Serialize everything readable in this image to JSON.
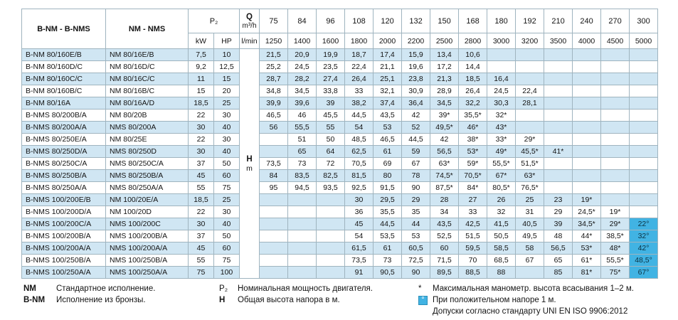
{
  "table": {
    "header": {
      "models_bronze": "B-NM - B-NMS",
      "models_standard": "NM - NMS",
      "power": "P₂",
      "kw": "kW",
      "hp": "HP",
      "flow": "Q",
      "flow_unit": "m³/h",
      "flow_unit_lmin": "l/min",
      "head": "H",
      "head_unit": "m",
      "q_m3h": [
        "75",
        "84",
        "96",
        "108",
        "120",
        "132",
        "150",
        "168",
        "180",
        "192",
        "210",
        "240",
        "270",
        "300"
      ],
      "q_lmin": [
        "1250",
        "1400",
        "1600",
        "1800",
        "2000",
        "2200",
        "2500",
        "2800",
        "3000",
        "3200",
        "3500",
        "4000",
        "4500",
        "5000"
      ]
    },
    "rows": [
      {
        "bnm": "B-NM 80/160E/B",
        "nm": "NM 80/16E/B",
        "kw": "7,5",
        "hp": "10",
        "h": [
          "21,5",
          "20,9",
          "19,9",
          "18,7",
          "17,4",
          "15,9",
          "13,4",
          "10,6",
          "",
          "",
          "",
          "",
          "",
          ""
        ]
      },
      {
        "bnm": "B-NM 80/160D/C",
        "nm": "NM 80/16D/C",
        "kw": "9,2",
        "hp": "12,5",
        "h": [
          "25,2",
          "24,5",
          "23,5",
          "22,4",
          "21,1",
          "19,6",
          "17,2",
          "14,4",
          "",
          "",
          "",
          "",
          "",
          ""
        ]
      },
      {
        "bnm": "B-NM 80/160C/C",
        "nm": "NM 80/16C/C",
        "kw": "11",
        "hp": "15",
        "h": [
          "28,7",
          "28,2",
          "27,4",
          "26,4",
          "25,1",
          "23,8",
          "21,3",
          "18,5",
          "16,4",
          "",
          "",
          "",
          "",
          ""
        ]
      },
      {
        "bnm": "B-NM 80/160B/C",
        "nm": "NM 80/16B/C",
        "kw": "15",
        "hp": "20",
        "h": [
          "34,8",
          "34,5",
          "33,8",
          "33",
          "32,1",
          "30,9",
          "28,9",
          "26,4",
          "24,5",
          "22,4",
          "",
          "",
          "",
          ""
        ]
      },
      {
        "bnm": "B-NM 80/16A",
        "nm": "NM 80/16A/D",
        "kw": "18,5",
        "hp": "25",
        "h": [
          "39,9",
          "39,6",
          "39",
          "38,2",
          "37,4",
          "36,4",
          "34,5",
          "32,2",
          "30,3",
          "28,1",
          "",
          "",
          "",
          ""
        ]
      },
      {
        "bnm": "B-NMS 80/200B/A",
        "nm": "NM 80/20B",
        "kw": "22",
        "hp": "30",
        "h": [
          "46,5",
          "46",
          "45,5",
          "44,5",
          "43,5",
          "42",
          "39*",
          "35,5*",
          "32*",
          "",
          "",
          "",
          "",
          ""
        ]
      },
      {
        "bnm": "B-NMS 80/200A/A",
        "nm": "NMS 80/200A",
        "kw": "30",
        "hp": "40",
        "h": [
          "56",
          "55,5",
          "55",
          "54",
          "53",
          "52",
          "49,5*",
          "46*",
          "43*",
          "",
          "",
          "",
          "",
          ""
        ]
      },
      {
        "bnm": "B-NMS 80/250E/A",
        "nm": "NM 80/25E",
        "kw": "22",
        "hp": "30",
        "h": [
          "",
          "51",
          "50",
          "48,5",
          "46,5",
          "44,5",
          "42",
          "38*",
          "33*",
          "29*",
          "",
          "",
          "",
          ""
        ]
      },
      {
        "bnm": "B-NMS 80/250D/A",
        "nm": "NMS 80/250D",
        "kw": "30",
        "hp": "40",
        "h": [
          "",
          "65",
          "64",
          "62,5",
          "61",
          "59",
          "56,5",
          "53*",
          "49*",
          "45,5*",
          "41*",
          "",
          "",
          ""
        ]
      },
      {
        "bnm": "B-NMS 80/250C/A",
        "nm": "NMS 80/250C/A",
        "kw": "37",
        "hp": "50",
        "h": [
          "73,5",
          "73",
          "72",
          "70,5",
          "69",
          "67",
          "63*",
          "59*",
          "55,5*",
          "51,5*",
          "",
          "",
          "",
          ""
        ]
      },
      {
        "bnm": "B-NMS 80/250B/A",
        "nm": "NMS 80/250B/A",
        "kw": "45",
        "hp": "60",
        "h": [
          "84",
          "83,5",
          "82,5",
          "81,5",
          "80",
          "78",
          "74,5*",
          "70,5*",
          "67*",
          "63*",
          "",
          "",
          "",
          ""
        ]
      },
      {
        "bnm": "B-NMS 80/250A/A",
        "nm": "NMS 80/250A/A",
        "kw": "55",
        "hp": "75",
        "h": [
          "95",
          "94,5",
          "93,5",
          "92,5",
          "91,5",
          "90",
          "87,5*",
          "84*",
          "80,5*",
          "76,5*",
          "",
          "",
          "",
          ""
        ]
      },
      {
        "bnm": "B-NMS 100/200E/B",
        "nm": "NM 100/20E/A",
        "kw": "18,5",
        "hp": "25",
        "h": [
          "",
          "",
          "",
          "30",
          "29,5",
          "29",
          "28",
          "27",
          "26",
          "25",
          "23",
          "19*",
          "",
          ""
        ]
      },
      {
        "bnm": "B-NMS 100/200D/A",
        "nm": "NM 100/20D",
        "kw": "22",
        "hp": "30",
        "h": [
          "",
          "",
          "",
          "36",
          "35,5",
          "35",
          "34",
          "33",
          "32",
          "31",
          "29",
          "24,5*",
          "19*",
          ""
        ]
      },
      {
        "bnm": "B-NMS 100/200C/A",
        "nm": "NMS 100/200C",
        "kw": "30",
        "hp": "40",
        "h": [
          "",
          "",
          "",
          "45",
          "44,5",
          "44",
          "43,5",
          "42,5",
          "41,5",
          "40,5",
          "39",
          "34,5*",
          "29*",
          "22°"
        ]
      },
      {
        "bnm": "B-NMS 100/200B/A",
        "nm": "NMS 100/200B/A",
        "kw": "37",
        "hp": "50",
        "h": [
          "",
          "",
          "",
          "54",
          "53,5",
          "53",
          "52,5",
          "51,5",
          "50,5",
          "49,5",
          "48",
          "44*",
          "38,5*",
          "32°"
        ]
      },
      {
        "bnm": "B-NMS 100/200A/A",
        "nm": "NMS 100/200A/A",
        "kw": "45",
        "hp": "60",
        "h": [
          "",
          "",
          "",
          "61,5",
          "61",
          "60,5",
          "60",
          "59,5",
          "58,5",
          "58",
          "56,5",
          "53*",
          "48*",
          "42°"
        ]
      },
      {
        "bnm": "B-NMS 100/250B/A",
        "nm": "NMS 100/250B/A",
        "kw": "55",
        "hp": "75",
        "h": [
          "",
          "",
          "",
          "73,5",
          "73",
          "72,5",
          "71,5",
          "70",
          "68,5",
          "67",
          "65",
          "61*",
          "55,5*",
          "48,5°"
        ]
      },
      {
        "bnm": "B-NMS 100/250A/A",
        "nm": "NMS 100/250A/A",
        "kw": "75",
        "hp": "100",
        "h": [
          "",
          "",
          "",
          "91",
          "90,5",
          "90",
          "89,5",
          "88,5",
          "88",
          "",
          "85",
          "81*",
          "75*",
          "67°"
        ]
      }
    ]
  },
  "legend": {
    "standard": {
      "term": "NM",
      "text": "Стандартное исполнение."
    },
    "bronze": {
      "term": "B-NM",
      "text": "Исполнение из бронзы."
    },
    "power": {
      "term": "P₂",
      "text": "Номинальная мощность двигателя."
    },
    "head": {
      "term": "H",
      "text": "Общая высота напора в м."
    },
    "asterisk": {
      "term": "*",
      "text": "Максимальная манометр. высота всасывания 1–2 м."
    },
    "degree": {
      "term": "°",
      "text": "При положительном напоре 1 м."
    },
    "tolerance": {
      "text": "Допуски согласно стандарту UNI EN ISO 9906:2012"
    }
  },
  "colors": {
    "row_alt": "#d0e6f3",
    "highlight": "#41b3e3"
  }
}
